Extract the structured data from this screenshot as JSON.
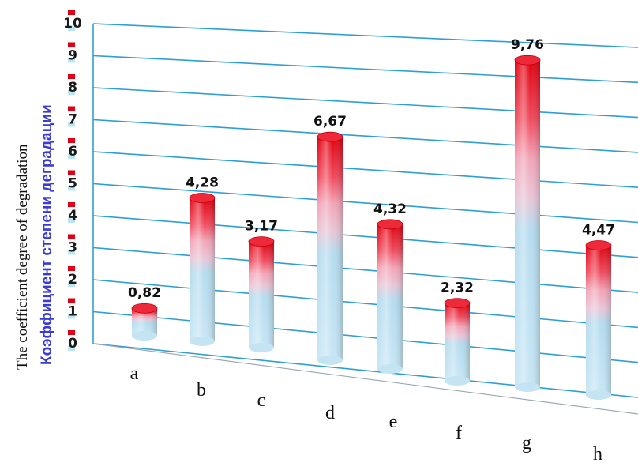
{
  "chart_data": {
    "type": "bar",
    "ylabel": "The coefficient degree of degradation",
    "ylabel_secondary": "Коэффициент степени деградации",
    "categories": [
      "a",
      "b",
      "c",
      "d",
      "e",
      "f",
      "g",
      "h"
    ],
    "values": [
      0.82,
      4.28,
      3.17,
      6.67,
      4.32,
      2.32,
      9.76,
      4.47
    ],
    "value_labels": [
      "0,82",
      "4,28",
      "3,17",
      "6,67",
      "4,32",
      "2,32",
      "9,76",
      "4,47"
    ],
    "yticks": [
      "0",
      "1",
      "2",
      "3",
      "4",
      "5",
      "6",
      "7",
      "8",
      "9",
      "10"
    ],
    "ylim": [
      0,
      10
    ],
    "grid": true,
    "style": "3d-cylinders",
    "colors": {
      "cylinder_base": "#bfe3f4",
      "cylinder_top": "#e8000f",
      "gridline": "#2e9fd3",
      "tick_marker_red": "#e00010",
      "tick_marker_blue": "#bde4f3"
    }
  }
}
